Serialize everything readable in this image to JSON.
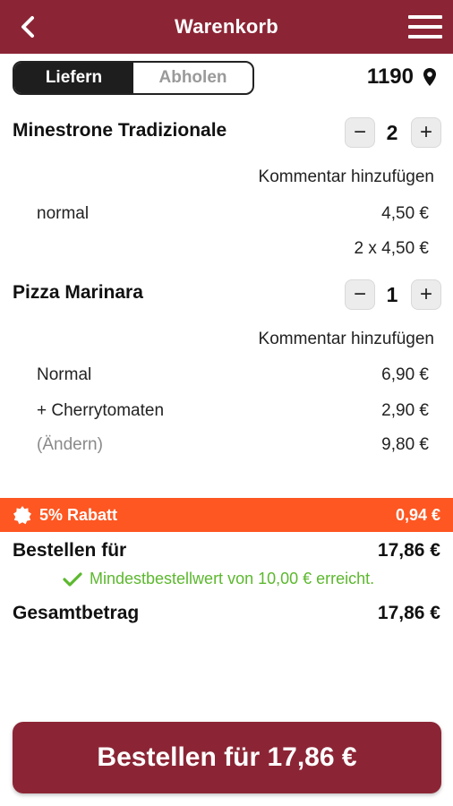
{
  "header": {
    "title": "Warenkorb"
  },
  "delivery_mode": {
    "options": [
      "Liefern",
      "Abholen"
    ],
    "selected": "Liefern"
  },
  "postal_code": "1190",
  "items": [
    {
      "name": "Minestrone Tradizionale",
      "quantity": "2",
      "comment_link": "Kommentar hinzufügen",
      "lines": [
        {
          "label": "normal",
          "price": "4,50 €"
        },
        {
          "label": "",
          "price": "2 x 4,50 €"
        }
      ]
    },
    {
      "name": "Pizza Marinara",
      "quantity": "1",
      "comment_link": "Kommentar hinzufügen",
      "lines": [
        {
          "label": "Normal",
          "price": "6,90 €"
        },
        {
          "label": "+ Cherrytomaten",
          "price": "2,90 €"
        },
        {
          "label": "(Ändern)",
          "price": "9,80 €"
        }
      ]
    }
  ],
  "discount": {
    "label": "5% Rabatt",
    "amount": "0,94 €",
    "color": "#fe5722"
  },
  "summary": {
    "order_for_label": "Bestellen für",
    "order_for_value": "17,86 €",
    "min_order_note": "Mindestbestellwert von 10,00 € erreicht.",
    "total_label": "Gesamtbetrag",
    "total_value": "17,86 €"
  },
  "order_button": {
    "label": "Bestellen für 17,86 €"
  },
  "colors": {
    "brand": "#8b2535",
    "accent": "#fe5722",
    "success": "#5cb82e"
  }
}
